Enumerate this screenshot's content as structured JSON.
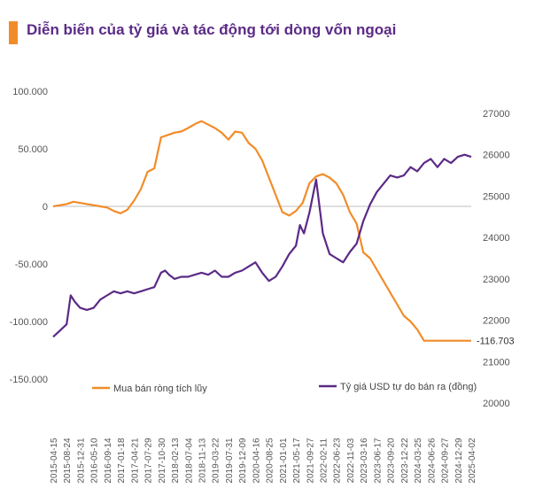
{
  "title": "Diễn biến của tỷ giá và tác động tới dòng vốn ngoại",
  "colors": {
    "net_buy": "#f28c28",
    "usd_rate": "#5b2a86",
    "title_accent": "#f28c28",
    "title_text": "#5b2a86"
  },
  "chart_data": {
    "type": "line",
    "grid": false,
    "legend_placement": "bottom",
    "x_tick_labels": [
      "2015-04-15",
      "2015-08-24",
      "2015-12-31",
      "2016-05-10",
      "2016-09-14",
      "2017-01-18",
      "2017-04-21",
      "2017-07-29",
      "2017-10-30",
      "2018-02-13",
      "2018-07-04",
      "2018-11-13",
      "2019-03-22",
      "2019-07-31",
      "2019-12-09",
      "2020-04-16",
      "2020-08-25",
      "2021-01-01",
      "2021-05-17",
      "2021-09-27",
      "2022-02-11",
      "2022-06-23",
      "2022-11-03",
      "2023-03-16",
      "2023-06-17",
      "2023-09-20",
      "2023-12-22",
      "2024-03-25",
      "2024-06-26",
      "2024-09-27",
      "2024-12-29",
      "2025-04-02"
    ],
    "y_left": {
      "ticks": [
        "100.000",
        "50.000",
        "0",
        "-50.000",
        "-100.000",
        "-150.000"
      ],
      "range": [
        -150000,
        100000
      ]
    },
    "y_right": {
      "ticks": [
        "27000",
        "26000",
        "25000",
        "24000",
        "23000",
        "22000",
        "21000",
        "20000"
      ],
      "range": [
        20000,
        27000
      ]
    },
    "annotation": "-116.703",
    "series": [
      {
        "name": "Mua bán ròng tích lũy",
        "axis": "left",
        "x": [
          0,
          0.5,
          1,
          1.5,
          2,
          2.5,
          3,
          3.5,
          4,
          4.5,
          5,
          5.5,
          6,
          6.5,
          7,
          7.5,
          8,
          8.5,
          9,
          9.5,
          10,
          10.3,
          10.6,
          11,
          11.5,
          12,
          12.5,
          13,
          13.5,
          14,
          14.5,
          15,
          15.5,
          16,
          16.5,
          17,
          17.5,
          18,
          18.5,
          19,
          19.5,
          20,
          20.5,
          21,
          21.5,
          22,
          22.5,
          23,
          23.5,
          24,
          24.5,
          25,
          25.5,
          26,
          26.5,
          27,
          27.5,
          28,
          28.5,
          29,
          29.5,
          30,
          30.5,
          31
        ],
        "values": [
          0,
          1000,
          2000,
          4000,
          3000,
          2000,
          1000,
          0,
          -1000,
          -4000,
          -6000,
          -3000,
          5000,
          15000,
          30000,
          33000,
          60000,
          62000,
          64000,
          65000,
          68000,
          70000,
          72000,
          74000,
          71000,
          68000,
          64000,
          58000,
          65000,
          64000,
          55000,
          50000,
          40000,
          25000,
          10000,
          -5000,
          -8000,
          -4000,
          3000,
          20000,
          26000,
          28000,
          25000,
          20000,
          10000,
          -5000,
          -15000,
          -40000,
          -45000,
          -55000,
          -65000,
          -75000,
          -85000,
          -95000,
          -100000,
          -107000,
          -116703,
          -116703,
          -116703,
          -116703,
          -116703,
          -116703,
          -116703,
          -116703
        ]
      },
      {
        "name": "Tỷ giá USD tự do bán ra (đồng)",
        "axis": "right",
        "x": [
          0,
          0.5,
          1,
          1.3,
          1.6,
          2,
          2.5,
          3,
          3.5,
          4,
          4.5,
          5,
          5.5,
          6,
          6.5,
          7,
          7.5,
          8,
          8.3,
          8.6,
          9,
          9.5,
          10,
          10.5,
          11,
          11.5,
          12,
          12.5,
          13,
          13.5,
          14,
          14.5,
          15,
          15.5,
          16,
          16.5,
          17,
          17.5,
          18,
          18.3,
          18.6,
          19,
          19.5,
          20,
          20.5,
          21,
          21.5,
          22,
          22.5,
          23,
          23.5,
          24,
          24.5,
          25,
          25.5,
          26,
          26.5,
          27,
          27.5,
          28,
          28.5,
          29,
          29.5,
          30,
          30.5,
          31
        ],
        "values": [
          21600,
          21750,
          21900,
          22600,
          22450,
          22300,
          22250,
          22300,
          22500,
          22600,
          22700,
          22650,
          22700,
          22650,
          22700,
          22750,
          22800,
          23150,
          23200,
          23100,
          23000,
          23050,
          23050,
          23100,
          23150,
          23100,
          23200,
          23050,
          23050,
          23150,
          23200,
          23300,
          23400,
          23150,
          22950,
          23050,
          23300,
          23600,
          23800,
          24300,
          24100,
          24600,
          25400,
          24100,
          23600,
          23500,
          23400,
          23650,
          23850,
          24400,
          24800,
          25100,
          25300,
          25500,
          25450,
          25500,
          25700,
          25600,
          25800,
          25900,
          25700,
          25900,
          25800,
          25950,
          26000,
          25950
        ]
      }
    ]
  }
}
